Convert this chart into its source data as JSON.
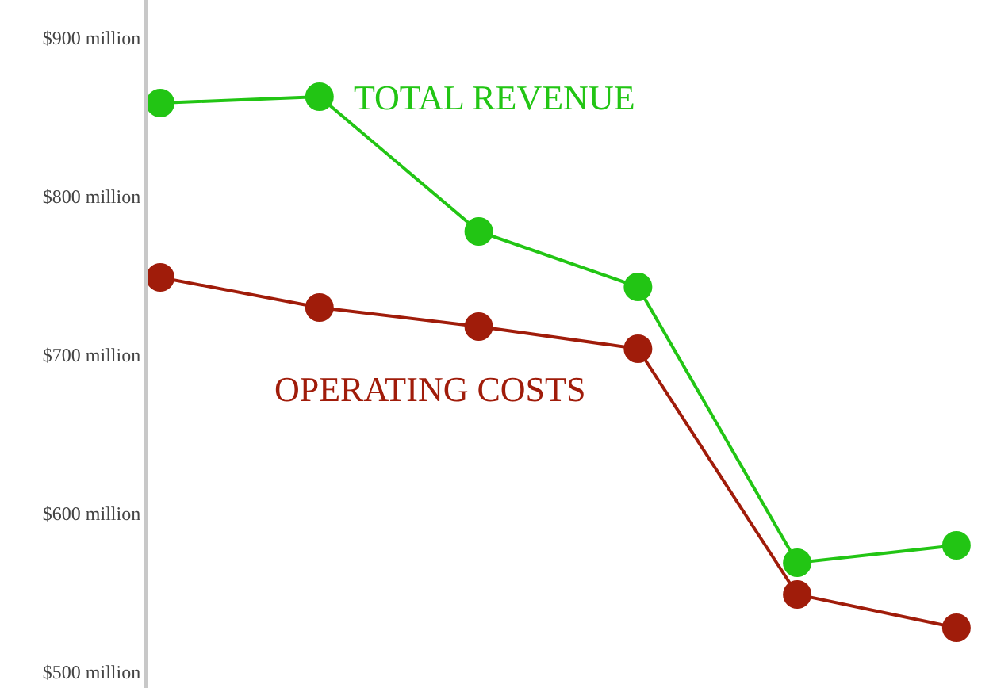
{
  "chart_data": {
    "type": "line",
    "categories": [
      null,
      null,
      null,
      null,
      null,
      null
    ],
    "series": [
      {
        "name": "TOTAL REVENUE",
        "color": "#22c514",
        "values": [
          859,
          863,
          778,
          743,
          569,
          580
        ]
      },
      {
        "name": "OPERATING COSTS",
        "color": "#a01c0a",
        "values": [
          749,
          730,
          718,
          704,
          549,
          528
        ]
      }
    ],
    "ylim": [
      490,
      924
    ],
    "yticks": [
      {
        "value": 500,
        "label": "$500 million"
      },
      {
        "value": 600,
        "label": "$600 million"
      },
      {
        "value": 700,
        "label": "$700 million"
      },
      {
        "value": 800,
        "label": "$800 million"
      },
      {
        "value": 900,
        "label": "$900 million"
      }
    ],
    "legend": false,
    "marker": "circle",
    "line_style": "solid"
  }
}
